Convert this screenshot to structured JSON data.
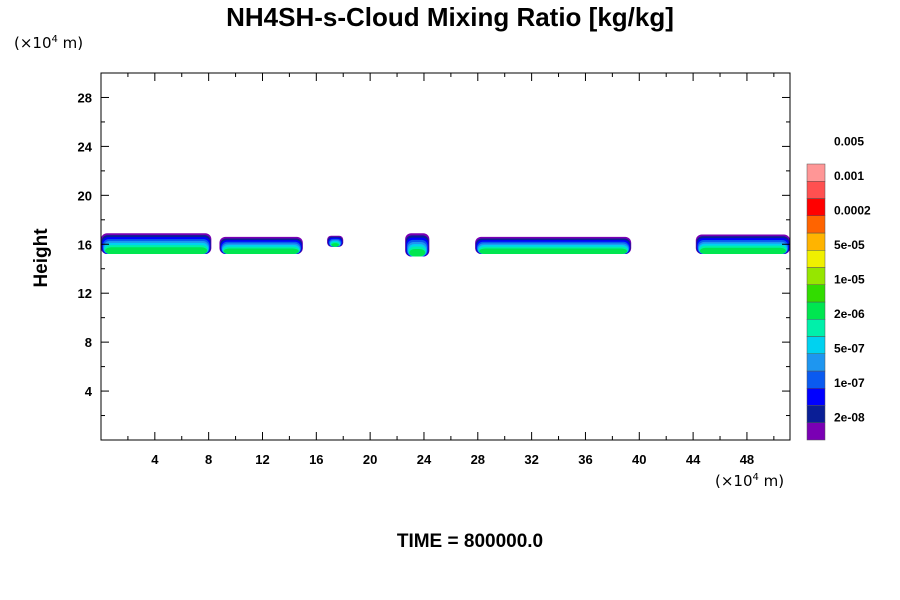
{
  "title": "NH4SH-s-Cloud Mixing Ratio [kg/kg]",
  "ylabel": "Height",
  "time_label": "TIME = 800000.0",
  "unit_y": {
    "prefix": "(×10",
    "exp": "4",
    "suffix": " m)"
  },
  "unit_x": {
    "prefix": "(×10",
    "exp": "4",
    "suffix": " m)"
  },
  "colorbar": {
    "colors": [
      "#7a00b4",
      "#0a1e96",
      "#0000ff",
      "#0a5af0",
      "#1e96f0",
      "#00d2f0",
      "#00f0aa",
      "#00e650",
      "#32dc00",
      "#96e600",
      "#f0f000",
      "#ffb400",
      "#ff6400",
      "#ff0000",
      "#ff5050",
      "#ff9696"
    ],
    "labels": [
      "2e-08",
      "1e-07",
      "5e-07",
      "2e-06",
      "1e-05",
      "5e-05",
      "0.0002",
      "0.001",
      "0.005"
    ]
  },
  "chart_data": {
    "type": "heatmap",
    "title": "NH4SH-s-Cloud Mixing Ratio [kg/kg]",
    "xlabel": "",
    "ylabel": "Height",
    "x_unit": "(×10^4 m)",
    "y_unit": "(×10^4 m)",
    "xlim": [
      0,
      51.2
    ],
    "ylim": [
      0,
      30
    ],
    "x_ticks": [
      4,
      8,
      12,
      16,
      20,
      24,
      28,
      32,
      36,
      40,
      44,
      48
    ],
    "y_ticks": [
      4,
      8,
      12,
      16,
      20,
      24,
      28
    ],
    "cloud_segments": [
      {
        "x_start": 0.0,
        "x_end": 8.2,
        "y_bottom": 15.2,
        "y_top": 16.9
      },
      {
        "x_start": 8.8,
        "x_end": 15.0,
        "y_bottom": 15.2,
        "y_top": 16.6
      },
      {
        "x_start": 16.8,
        "x_end": 18.0,
        "y_bottom": 15.8,
        "y_top": 16.7
      },
      {
        "x_start": 22.6,
        "x_end": 24.4,
        "y_bottom": 15.0,
        "y_top": 16.9
      },
      {
        "x_start": 27.8,
        "x_end": 39.4,
        "y_bottom": 15.2,
        "y_top": 16.6
      },
      {
        "x_start": 44.2,
        "x_end": 51.2,
        "y_bottom": 15.2,
        "y_top": 16.8
      }
    ],
    "time": 800000.0
  }
}
